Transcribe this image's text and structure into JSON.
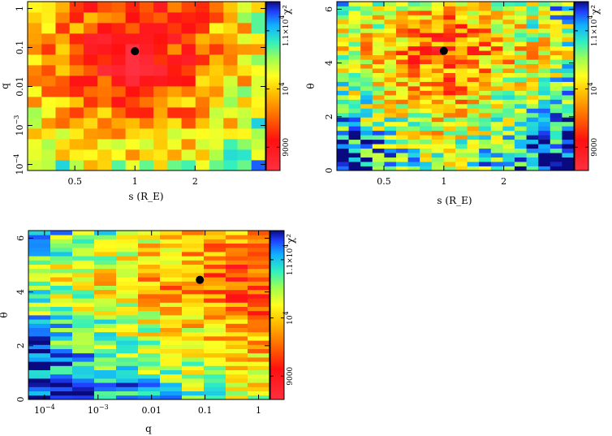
{
  "chart_data": [
    {
      "type": "heatmap",
      "panel": "s-q",
      "xlabel": "s (R_E)",
      "ylabel": "q",
      "xscale": "log",
      "yscale": "log",
      "xlim": [
        0.29,
        4.5
      ],
      "ylim": [
        7e-05,
        1.5
      ],
      "xticks": [
        "0.5",
        "1",
        "2"
      ],
      "xtick_values": [
        0.5,
        1,
        2
      ],
      "yticks": [
        "10^-4",
        "10^-3",
        "0.01",
        "0.1",
        "1"
      ],
      "ytick_values": [
        0.0001,
        0.001,
        0.01,
        0.1,
        1
      ],
      "grid": false,
      "nx": 17,
      "ny": 16,
      "best_fit": {
        "x": 1.0,
        "y": 0.08
      },
      "seed": 11
    },
    {
      "type": "heatmap",
      "panel": "s-theta",
      "xlabel": "s (R_E)",
      "ylabel": "θ",
      "xscale": "log",
      "yscale": "linear",
      "xlim": [
        0.29,
        4.5
      ],
      "ylim": [
        0,
        6.2832
      ],
      "xticks": [
        "0.5",
        "1",
        "2"
      ],
      "xtick_values": [
        0.5,
        1,
        2
      ],
      "yticks": [
        "0",
        "2",
        "4",
        "6"
      ],
      "ytick_values": [
        0,
        2,
        4,
        6
      ],
      "grid": false,
      "nx": 20,
      "ny": 38,
      "best_fit": {
        "x": 1.0,
        "y": 4.45
      },
      "seed": 23
    },
    {
      "type": "heatmap",
      "panel": "q-theta",
      "xlabel": "q",
      "ylabel": "θ",
      "xscale": "log",
      "yscale": "linear",
      "xlim": [
        5e-05,
        1.6
      ],
      "ylim": [
        0,
        6.2832
      ],
      "xticks": [
        "10^-4",
        "10^-3",
        "0.01",
        "0.1",
        "1"
      ],
      "xtick_values": [
        0.0001,
        0.001,
        0.01,
        0.1,
        1
      ],
      "yticks": [
        "0",
        "2",
        "4",
        "6"
      ],
      "ytick_values": [
        0,
        2,
        4,
        6
      ],
      "grid": false,
      "nx": 11,
      "ny": 40,
      "best_fit": {
        "x": 0.08,
        "y": 4.45
      },
      "seed": 37
    }
  ],
  "colorbar": {
    "title": "χ²",
    "min": 8600,
    "max": 11500,
    "tick_labels": [
      "9000",
      "10^4",
      "1.1×10^4"
    ],
    "tick_values": [
      9000,
      10000,
      11000
    ]
  },
  "colors": {
    "best_fit_marker": "#000000",
    "panel_border": "#000000"
  }
}
